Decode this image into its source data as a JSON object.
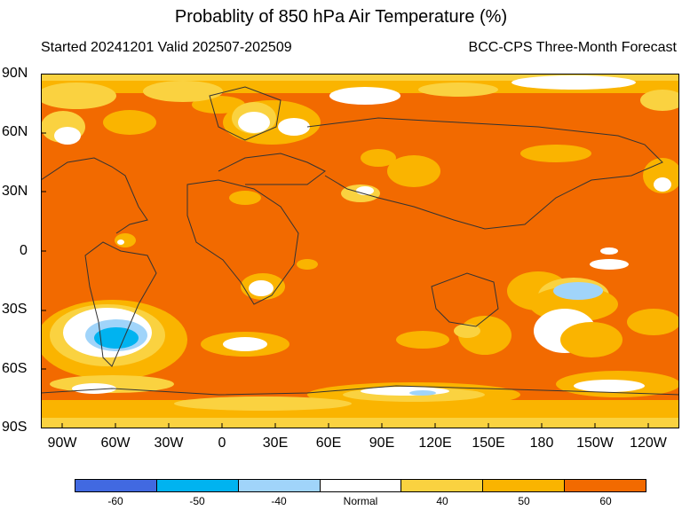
{
  "title": "Probablity of 850 hPa Air Temperature (%)",
  "subtitle_left": "Started 20241201  Valid 202507-202509",
  "subtitle_right": "BCC-CPS Three-Month Forecast",
  "lat_labels": [
    "90N",
    "60N",
    "30N",
    "0",
    "30S",
    "60S",
    "90S"
  ],
  "lon_labels": [
    "90W",
    "60W",
    "30W",
    "0",
    "30E",
    "60E",
    "90E",
    "120E",
    "150E",
    "180",
    "150W",
    "120W"
  ],
  "colorbar": {
    "labels": [
      "-60",
      "-50",
      "-40",
      "Normal",
      "40",
      "50",
      "60"
    ],
    "colors": [
      "#4169e1",
      "#00b3f0",
      "#a0d4fa",
      "#ffffff",
      "#fad240",
      "#fab400",
      "#f26a00"
    ]
  }
}
